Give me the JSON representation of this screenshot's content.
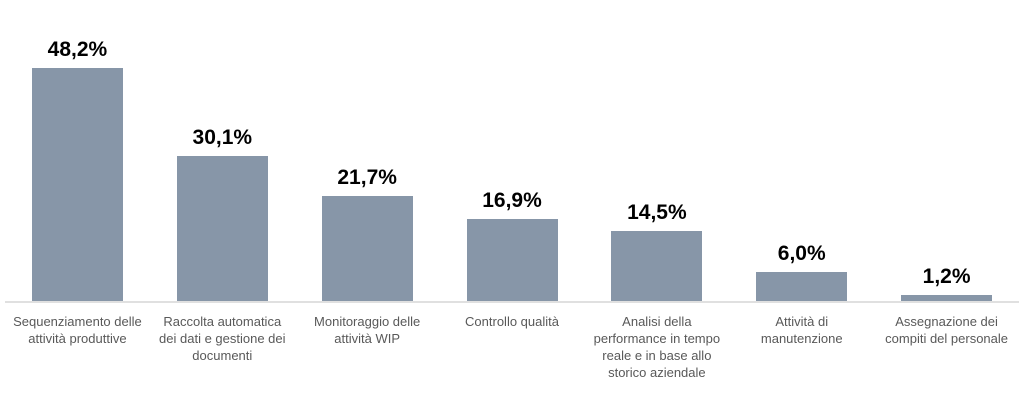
{
  "chart_data": {
    "type": "bar",
    "categories": [
      "Sequenziamento delle attività produttive",
      "Raccolta automatica dei dati e gestione dei documenti",
      "Monitoraggio delle attività WIP",
      "Controllo qualità",
      "Analisi della performance in tempo reale e in base allo storico aziendale",
      "Attività di manutenzione",
      "Assegnazione dei compiti del personale"
    ],
    "values": [
      48.2,
      30.1,
      21.7,
      16.9,
      14.5,
      6.0,
      1.2
    ],
    "value_labels": [
      "48,2%",
      "30,1%",
      "21,7%",
      "16,9%",
      "14,5%",
      "6,0%",
      "1,2%"
    ],
    "title": "",
    "xlabel": "",
    "ylabel": "",
    "ylim": [
      0,
      50
    ],
    "grid": false,
    "legend_position": "none",
    "bar_color": "#8796A8",
    "axis_line_color": "#E0E0E0",
    "value_label_color": "#000000",
    "category_label_color": "#595959"
  }
}
